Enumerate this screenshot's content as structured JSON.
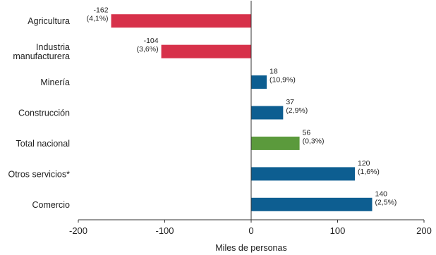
{
  "chart_data": {
    "type": "bar",
    "orientation": "horizontal",
    "categories": [
      "Agricultura",
      "Industria manufacturera",
      "Minería",
      "Construcción",
      "Total nacional",
      "Otros servicios*",
      "Comercio"
    ],
    "category_lines": [
      [
        "Agricultura"
      ],
      [
        "Industria",
        "manufacturera"
      ],
      [
        "Minería"
      ],
      [
        "Construcción"
      ],
      [
        "Total nacional"
      ],
      [
        "Otros servicios*"
      ],
      [
        "Comercio"
      ]
    ],
    "values": [
      -162,
      -104,
      18,
      37,
      56,
      120,
      140
    ],
    "value_labels": [
      "-162",
      "-104",
      "18",
      "37",
      "56",
      "120",
      "140"
    ],
    "pct_labels": [
      "(4,1%)",
      "(3,6%)",
      "(10,9%)",
      "(2,9%)",
      "(0,3%)",
      "(1,6%)",
      "(2,5%)"
    ],
    "xlim": [
      -200,
      200
    ],
    "xticks": [
      -200,
      -100,
      0,
      100,
      200
    ],
    "xtick_labels": [
      "-200",
      "-100",
      "0",
      "100",
      "200"
    ],
    "xlabel": "Miles de personas",
    "ylabel": "",
    "title": "",
    "grid": false,
    "colors": {
      "negative": "#d7314a",
      "positive": "#0d5e91",
      "total": "#5b9a3c",
      "axis": "#333333"
    },
    "bar_colors": [
      "negative",
      "negative",
      "positive",
      "positive",
      "total",
      "positive",
      "positive"
    ]
  }
}
